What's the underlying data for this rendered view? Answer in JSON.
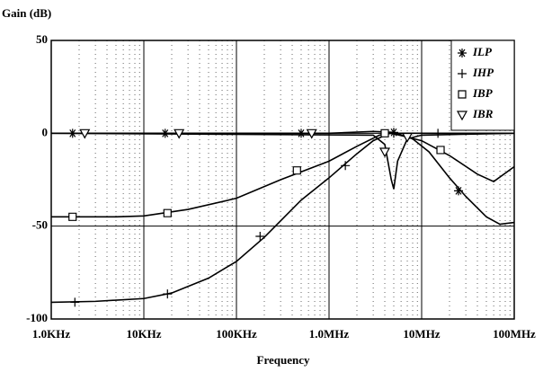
{
  "chart_data": {
    "type": "line",
    "title": "Gain (dB)",
    "x_label": "Frequency",
    "x_log": true,
    "grid": true,
    "xlim": [
      1000,
      100000000
    ],
    "xticks": [
      {
        "value": 1000,
        "label": "1.0KHz"
      },
      {
        "value": 10000,
        "label": "10KHz"
      },
      {
        "value": 100000,
        "label": "100KHz"
      },
      {
        "value": 1000000,
        "label": "1.0MHz"
      },
      {
        "value": 10000000,
        "label": "10MHz"
      },
      {
        "value": 100000000,
        "label": "100MHz"
      }
    ],
    "ylim": [
      -100,
      50
    ],
    "yticks": [
      -100,
      -50,
      0,
      50
    ],
    "legend": "upper-right",
    "series": [
      {
        "name": "ILP",
        "color": "#000000",
        "marker": "star",
        "x": [
          1000,
          1000000,
          3000000,
          5000000,
          8000000,
          12000000,
          20000000,
          30000000,
          50000000,
          70000000,
          100000000
        ],
        "values": [
          0,
          0,
          1,
          0.5,
          -3,
          -10,
          -24,
          -34,
          -45,
          -49,
          -48
        ],
        "markers": {
          "x": [
            1700,
            17000,
            500000,
            5000000,
            25000000
          ],
          "values": [
            0,
            0,
            0,
            0.5,
            -31
          ]
        }
      },
      {
        "name": "IHP",
        "color": "#000000",
        "marker": "plus",
        "x": [
          1000,
          3000,
          10000,
          20000,
          50000,
          100000,
          200000,
          500000,
          1000000,
          2000000,
          3000000,
          4500000,
          10000000,
          100000000
        ],
        "values": [
          -91,
          -90.5,
          -89,
          -86,
          -78,
          -69,
          -56,
          -36,
          -24,
          -11,
          -4,
          0,
          0,
          0
        ],
        "markers": {
          "x": [
            1800,
            18000,
            180000,
            1500000,
            5000000,
            15000000
          ],
          "values": [
            -91,
            -86.5,
            -55.5,
            -17.4,
            0,
            0
          ]
        }
      },
      {
        "name": "IBP",
        "color": "#000000",
        "marker": "square",
        "x": [
          1000,
          5000,
          10000,
          30000,
          100000,
          300000,
          1000000,
          2000000,
          3500000,
          4700000,
          7000000,
          10000000,
          20000000,
          40000000,
          60000000,
          100000000
        ],
        "values": [
          -45,
          -45,
          -44.5,
          -41,
          -35,
          -25,
          -15,
          -7,
          -1,
          0,
          -2,
          -4,
          -12,
          -22,
          -26,
          -18
        ],
        "markers": {
          "x": [
            1700,
            18000,
            450000,
            4000000,
            16000000
          ],
          "values": [
            -45,
            -43,
            -20,
            0,
            -9
          ]
        }
      },
      {
        "name": "IBR",
        "color": "#000000",
        "marker": "triangle",
        "x": [
          1000,
          3000000,
          4000000,
          4700000,
          5000000,
          5500000,
          7000000,
          10000000,
          100000000
        ],
        "values": [
          0,
          -1,
          -6,
          -25,
          -30,
          -15,
          -3,
          -1,
          0
        ],
        "markers": {
          "x": [
            2300,
            24000,
            650000,
            4000000,
            7000000
          ],
          "values": [
            0,
            0,
            0,
            -10,
            -2
          ]
        }
      }
    ]
  }
}
